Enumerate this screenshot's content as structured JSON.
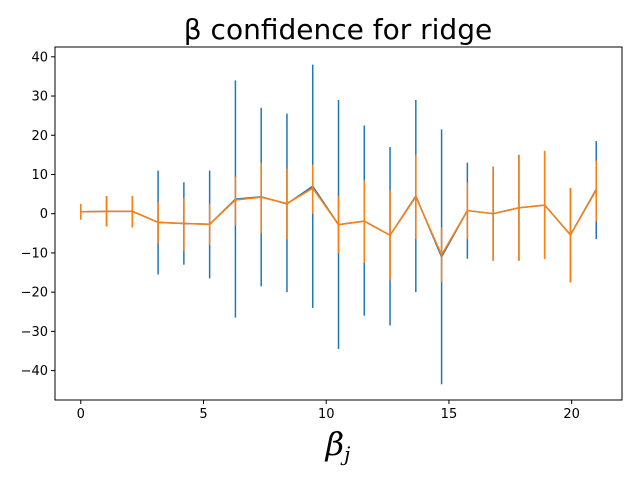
{
  "chart_data": {
    "type": "line",
    "title": "β confidence for ridge",
    "xlabel": "β",
    "xlabel_subscript": "j",
    "ylabel": "",
    "xlim": [
      -1.05,
      22.05
    ],
    "ylim": [
      -47.5,
      42.5
    ],
    "grid": false,
    "xticks": [
      0,
      5,
      10,
      15,
      20
    ],
    "yticks": [
      40,
      30,
      20,
      10,
      0,
      -10,
      -20,
      -30,
      -40
    ],
    "x": [
      0,
      1.05,
      2.1,
      3.15,
      4.2,
      5.25,
      6.3,
      7.35,
      8.4,
      9.45,
      10.5,
      11.55,
      12.6,
      13.65,
      14.7,
      15.75,
      16.8,
      17.85,
      18.9,
      19.95,
      21.0
    ],
    "series": [
      {
        "color": "#1f77b4",
        "y": [
          0.5,
          0.6,
          0.6,
          -2.2,
          -2.5,
          -2.7,
          3.7,
          4.3,
          2.5,
          7.0,
          -2.8,
          -1.9,
          -5.5,
          4.5,
          -11.0,
          0.8,
          0.0,
          1.5,
          2.2,
          -5.4,
          6.2
        ],
        "err_low": [
          -1.5,
          -3.2,
          -3.5,
          -15.5,
          -13.0,
          -16.5,
          -26.5,
          -18.5,
          -20.0,
          -24.0,
          -34.5,
          -26.0,
          -28.5,
          -20.0,
          -43.5,
          -11.5,
          -12.0,
          -12.0,
          -11.5,
          -17.5,
          -6.5
        ],
        "err_high": [
          2.5,
          4.5,
          4.5,
          11.0,
          8.0,
          11.0,
          34.0,
          27.0,
          25.5,
          38.0,
          29.0,
          22.5,
          17.0,
          29.0,
          21.5,
          13.0,
          12.0,
          15.0,
          16.0,
          6.5,
          18.5
        ]
      },
      {
        "color": "#ff7f0e",
        "y": [
          0.5,
          0.6,
          0.6,
          -2.2,
          -2.5,
          -2.7,
          3.5,
          4.2,
          2.6,
          6.5,
          -2.8,
          -1.9,
          -5.5,
          4.3,
          -10.5,
          0.8,
          0.0,
          1.5,
          2.2,
          -5.4,
          6.0
        ],
        "err_low": [
          -1.5,
          -3.2,
          -3.5,
          -7.5,
          -9.5,
          -8.0,
          -3.0,
          -5.0,
          -6.5,
          0.0,
          -10.0,
          -12.5,
          -17.0,
          -6.5,
          -17.5,
          -6.5,
          -12.0,
          -12.0,
          -11.5,
          -17.5,
          -2.0
        ],
        "err_high": [
          2.5,
          4.5,
          4.5,
          3.0,
          4.0,
          2.5,
          9.5,
          13.0,
          11.5,
          12.5,
          4.5,
          8.5,
          6.0,
          15.0,
          -3.5,
          8.0,
          12.0,
          15.0,
          16.0,
          6.5,
          13.5
        ]
      }
    ]
  }
}
